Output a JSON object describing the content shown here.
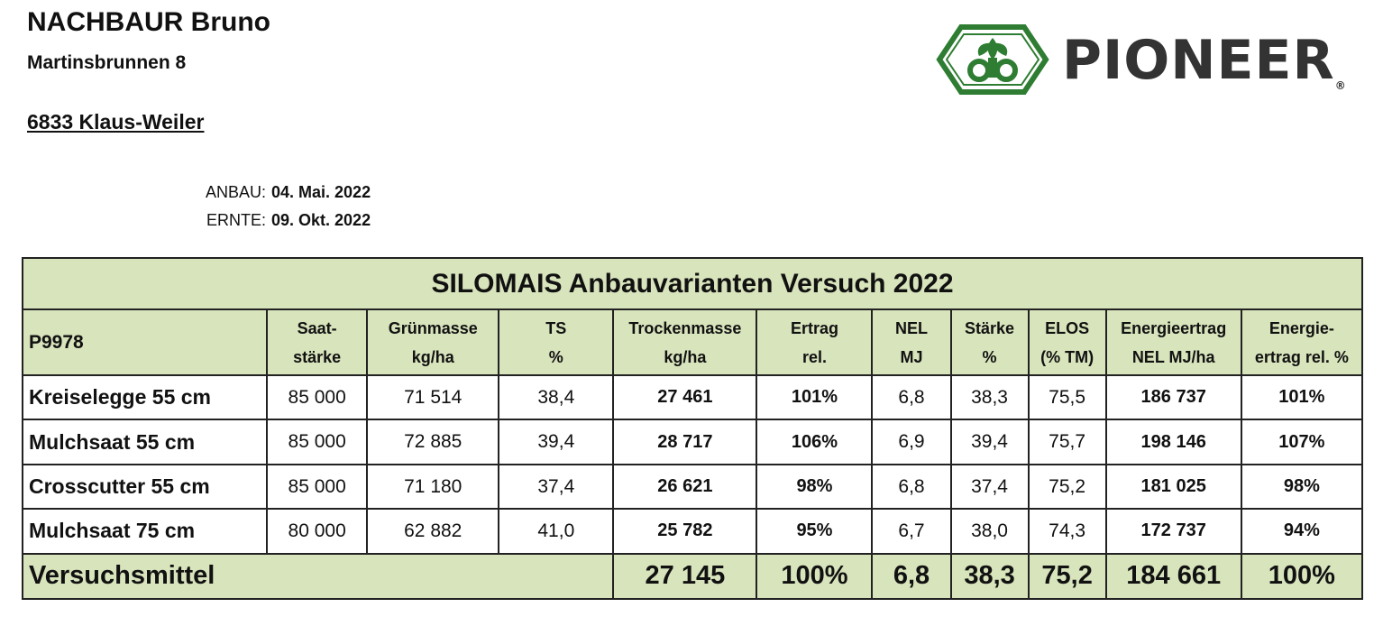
{
  "address": {
    "name": "NACHBAUR Bruno",
    "street": "Martinsbrunnen 8",
    "city": "6833 Klaus-Weiler"
  },
  "dates": {
    "anbau_label": "ANBAU:",
    "anbau_value": "04. Mai. 2022",
    "ernte_label": "ERNTE:",
    "ernte_value": "09. Okt. 2022"
  },
  "logo": {
    "wordmark": "PIONEER",
    "registered": "®",
    "brand_green": "#2e7d32"
  },
  "table": {
    "title": "SILOMAIS Anbauvarianten Versuch 2022",
    "variety": "P9978",
    "headers": [
      [
        "Saat-",
        "stärke"
      ],
      [
        "Grünmasse",
        "kg/ha"
      ],
      [
        "TS",
        "%"
      ],
      [
        "Trockenmasse",
        "kg/ha"
      ],
      [
        "Ertrag",
        "rel."
      ],
      [
        "NEL",
        "MJ"
      ],
      [
        "Stärke",
        "%"
      ],
      [
        "ELOS",
        "(% TM)"
      ],
      [
        "Energieertrag",
        "NEL MJ/ha"
      ],
      [
        "Energie-",
        "ertrag rel. %"
      ]
    ],
    "rows": [
      [
        "Kreiselegge 55 cm",
        "85 000",
        "71 514",
        "38,4",
        "27 461",
        "101%",
        "6,8",
        "38,3",
        "75,5",
        "186 737",
        "101%"
      ],
      [
        "Mulchsaat 55 cm",
        "85 000",
        "72 885",
        "39,4",
        "28 717",
        "106%",
        "6,9",
        "39,4",
        "75,7",
        "198 146",
        "107%"
      ],
      [
        "Crosscutter 55 cm",
        "85 000",
        "71 180",
        "37,4",
        "26 621",
        "98%",
        "6,8",
        "37,4",
        "75,2",
        "181 025",
        "98%"
      ],
      [
        "Mulchsaat 75 cm",
        "80 000",
        "62 882",
        "41,0",
        "25 782",
        "95%",
        "6,7",
        "38,0",
        "74,3",
        "172 737",
        "94%"
      ]
    ],
    "footer": {
      "label": "Versuchsmittel",
      "values": [
        "27  145",
        "100%",
        "6,8",
        "38,3",
        "75,2",
        "184 661",
        "100%"
      ]
    },
    "header_bg": "#d8e4bc"
  }
}
